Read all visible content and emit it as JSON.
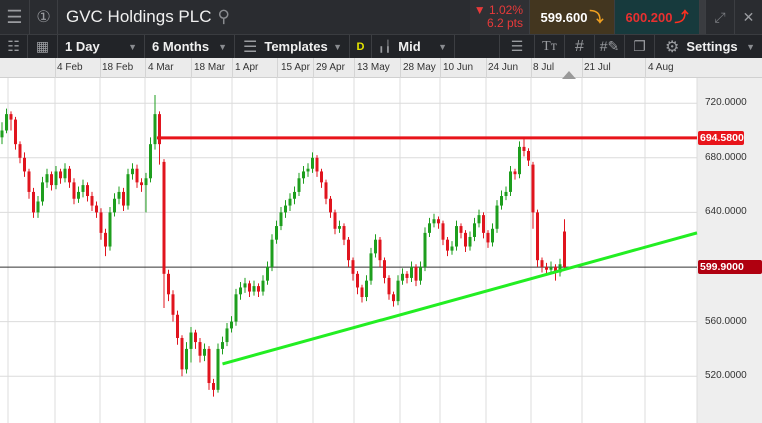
{
  "header": {
    "title": "GVC Holdings PLC",
    "change_pct": "▼ 1.02%",
    "change_pts": "6.2 pts",
    "sell_price": "599.600",
    "buy_price": "600.200",
    "icons": [
      "hamburger-menu-icon",
      "circle-one-icon",
      "search-icon",
      "expand-icon",
      "close-icon"
    ]
  },
  "toolbar": {
    "interval": "1 Day",
    "range": "6 Months",
    "templates": "Templates",
    "d_badge": "D",
    "price_type": "Mid",
    "settings": "Settings"
  },
  "colors": {
    "up": "#1e9e1e",
    "down": "#e0141e",
    "resistance": "#e8141a",
    "trendline": "#22ee22",
    "sell_bg": "#43361f",
    "buy_bg": "#173a3d",
    "sell_arrow": "#f0a020",
    "buy_text": "#e83030"
  },
  "chart_data": {
    "type": "candlestick",
    "x_tick_labels": [
      "4 Feb",
      "18 Feb",
      "4 Mar",
      "18 Mar",
      "1 Apr",
      "15 Apr",
      "29 Apr",
      "13 May",
      "28 May",
      "10 Jun",
      "24 Jun",
      "8 Jul",
      "21 Jul",
      "4 Aug"
    ],
    "y_tick_labels": [
      "720.0000",
      "680.0000",
      "640.0000",
      "560.0000",
      "520.0000"
    ],
    "y_ticks": [
      720,
      680,
      640,
      600,
      560,
      520
    ],
    "ylim": [
      495,
      747
    ],
    "grid": true,
    "resistance_level": {
      "value": 694.58,
      "label": "694.5800"
    },
    "current_price": {
      "value": 599.9,
      "label": "599.9000"
    },
    "trendline": {
      "start_candle": 49,
      "start_price": 529,
      "end_price": 625
    },
    "ohlc": [
      [
        695,
        706,
        690,
        700
      ],
      [
        700,
        716,
        698,
        712
      ],
      [
        712,
        714,
        700,
        708
      ],
      [
        708,
        710,
        686,
        690
      ],
      [
        690,
        692,
        676,
        680
      ],
      [
        680,
        684,
        666,
        670
      ],
      [
        670,
        672,
        650,
        655
      ],
      [
        655,
        658,
        636,
        640
      ],
      [
        640,
        652,
        636,
        648
      ],
      [
        648,
        666,
        645,
        662
      ],
      [
        662,
        672,
        658,
        668
      ],
      [
        668,
        670,
        656,
        660
      ],
      [
        660,
        674,
        657,
        670
      ],
      [
        670,
        672,
        661,
        665
      ],
      [
        665,
        676,
        662,
        672
      ],
      [
        672,
        674,
        658,
        662
      ],
      [
        662,
        665,
        646,
        650
      ],
      [
        650,
        659,
        647,
        655
      ],
      [
        655,
        664,
        651,
        660
      ],
      [
        660,
        662,
        648,
        652
      ],
      [
        652,
        655,
        641,
        645
      ],
      [
        645,
        648,
        636,
        640
      ],
      [
        640,
        643,
        620,
        625
      ],
      [
        625,
        628,
        608,
        615
      ],
      [
        615,
        644,
        612,
        640
      ],
      [
        640,
        654,
        637,
        650
      ],
      [
        650,
        659,
        646,
        655
      ],
      [
        655,
        658,
        641,
        645
      ],
      [
        645,
        672,
        642,
        668
      ],
      [
        668,
        676,
        664,
        672
      ],
      [
        672,
        675,
        658,
        662
      ],
      [
        662,
        665,
        655,
        660
      ],
      [
        660,
        669,
        640,
        665
      ],
      [
        665,
        695,
        662,
        690
      ],
      [
        690,
        726,
        686,
        712
      ],
      [
        712,
        714,
        675,
        690
      ],
      [
        677,
        679,
        570,
        595
      ],
      [
        595,
        598,
        575,
        580
      ],
      [
        580,
        583,
        560,
        565
      ],
      [
        565,
        568,
        543,
        548
      ],
      [
        548,
        550,
        520,
        525
      ],
      [
        525,
        545,
        522,
        540
      ],
      [
        540,
        556,
        530,
        552
      ],
      [
        552,
        554,
        540,
        545
      ],
      [
        545,
        548,
        530,
        535
      ],
      [
        535,
        544,
        531,
        540
      ],
      [
        540,
        542,
        510,
        515
      ],
      [
        515,
        518,
        505,
        510
      ],
      [
        510,
        544,
        508,
        540
      ],
      [
        540,
        549,
        536,
        545
      ],
      [
        545,
        559,
        542,
        555
      ],
      [
        555,
        564,
        552,
        560
      ],
      [
        560,
        584,
        557,
        580
      ],
      [
        580,
        589,
        576,
        585
      ],
      [
        585,
        592,
        581,
        588
      ],
      [
        588,
        590,
        578,
        582
      ],
      [
        582,
        590,
        579,
        586
      ],
      [
        586,
        588,
        578,
        582
      ],
      [
        582,
        594,
        579,
        590
      ],
      [
        590,
        604,
        587,
        600
      ],
      [
        600,
        624,
        597,
        620
      ],
      [
        620,
        634,
        617,
        630
      ],
      [
        630,
        644,
        627,
        640
      ],
      [
        640,
        649,
        636,
        645
      ],
      [
        645,
        654,
        641,
        650
      ],
      [
        650,
        659,
        646,
        655
      ],
      [
        655,
        669,
        652,
        665
      ],
      [
        665,
        674,
        661,
        670
      ],
      [
        670,
        676,
        666,
        672
      ],
      [
        672,
        684,
        669,
        680
      ],
      [
        680,
        682,
        666,
        670
      ],
      [
        670,
        672,
        658,
        662
      ],
      [
        662,
        664,
        646,
        650
      ],
      [
        650,
        652,
        636,
        640
      ],
      [
        640,
        642,
        624,
        628
      ],
      [
        628,
        634,
        625,
        630
      ],
      [
        630,
        632,
        616,
        620
      ],
      [
        620,
        622,
        600,
        605
      ],
      [
        605,
        607,
        590,
        595
      ],
      [
        595,
        597,
        580,
        585
      ],
      [
        585,
        587,
        574,
        578
      ],
      [
        578,
        594,
        575,
        590
      ],
      [
        590,
        614,
        587,
        610
      ],
      [
        610,
        624,
        607,
        620
      ],
      [
        620,
        622,
        600,
        605
      ],
      [
        605,
        607,
        588,
        592
      ],
      [
        592,
        594,
        576,
        580
      ],
      [
        580,
        582,
        571,
        575
      ],
      [
        575,
        594,
        572,
        590
      ],
      [
        590,
        599,
        587,
        595
      ],
      [
        595,
        597,
        588,
        592
      ],
      [
        592,
        604,
        589,
        600
      ],
      [
        600,
        602,
        586,
        590
      ],
      [
        590,
        604,
        587,
        600
      ],
      [
        600,
        629,
        597,
        625
      ],
      [
        625,
        636,
        622,
        632
      ],
      [
        632,
        639,
        629,
        635
      ],
      [
        635,
        637,
        628,
        632
      ],
      [
        632,
        634,
        616,
        620
      ],
      [
        620,
        622,
        608,
        612
      ],
      [
        612,
        619,
        609,
        615
      ],
      [
        615,
        634,
        612,
        630
      ],
      [
        630,
        632,
        621,
        625
      ],
      [
        625,
        627,
        611,
        615
      ],
      [
        615,
        626,
        612,
        622
      ],
      [
        622,
        636,
        619,
        632
      ],
      [
        632,
        642,
        629,
        638
      ],
      [
        638,
        640,
        621,
        625
      ],
      [
        625,
        627,
        614,
        618
      ],
      [
        618,
        632,
        615,
        628
      ],
      [
        628,
        649,
        625,
        645
      ],
      [
        645,
        656,
        642,
        652
      ],
      [
        652,
        659,
        649,
        655
      ],
      [
        655,
        674,
        652,
        670
      ],
      [
        670,
        672,
        664,
        668
      ],
      [
        668,
        692,
        665,
        688
      ],
      [
        688,
        694,
        681,
        685
      ],
      [
        685,
        687,
        674,
        678
      ],
      [
        675,
        677,
        628,
        640
      ],
      [
        640,
        642,
        600,
        605
      ],
      [
        605,
        607,
        596,
        600
      ],
      [
        600,
        603,
        594,
        598
      ],
      [
        598,
        604,
        595,
        600
      ],
      [
        600,
        602,
        590,
        596
      ],
      [
        596,
        606,
        593,
        602
      ],
      [
        626,
        635,
        598,
        599.9
      ]
    ]
  }
}
